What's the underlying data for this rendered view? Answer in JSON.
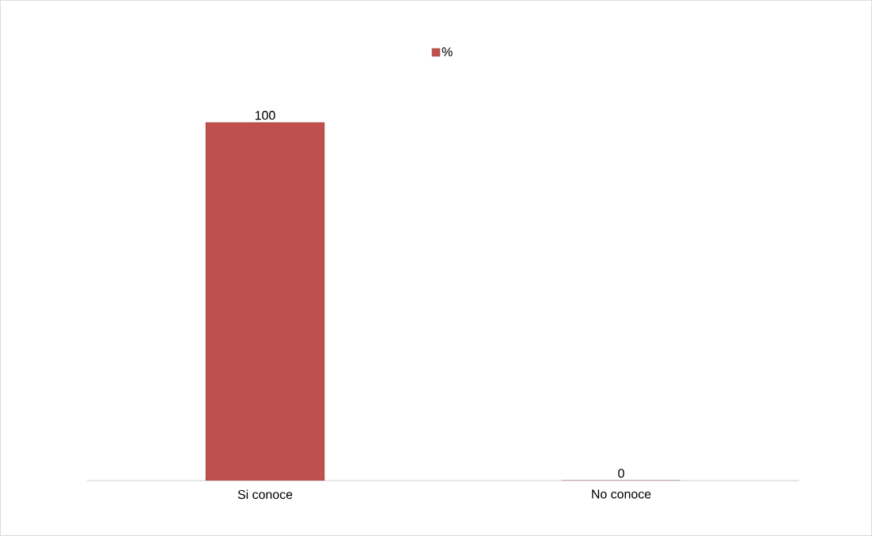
{
  "chart_data": {
    "type": "bar",
    "categories": [
      "Si conoce",
      "No conoce"
    ],
    "series": [
      {
        "name": "%",
        "color": "#c0504d",
        "values": [
          100,
          0
        ]
      }
    ],
    "data_labels": true,
    "legend": "top"
  }
}
